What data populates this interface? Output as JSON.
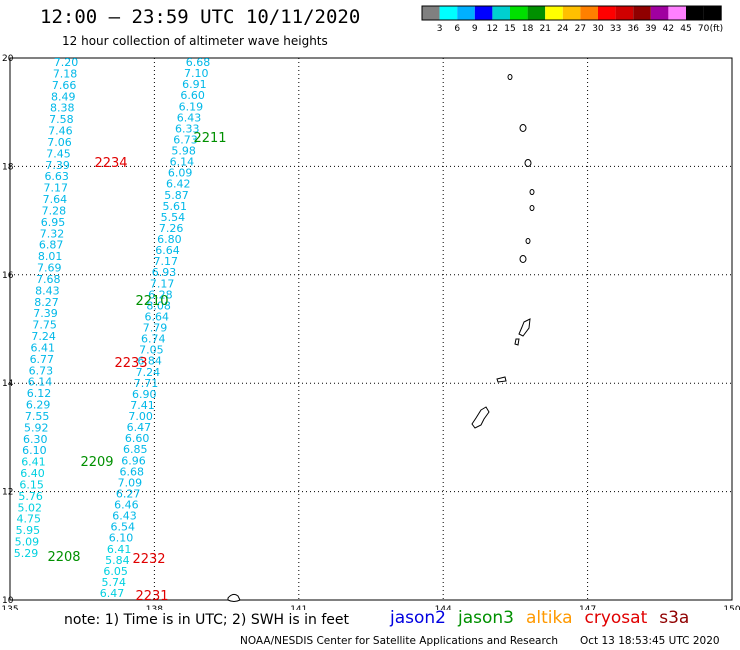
{
  "title": "12:00 – 23:59 UTC 10/11/2020",
  "subtitle": "12 hour collection of altimeter wave heights",
  "color_scale": {
    "unit": "(ft)",
    "ticks": [
      "3",
      "6",
      "9",
      "12",
      "15",
      "18",
      "21",
      "24",
      "27",
      "30",
      "33",
      "36",
      "39",
      "42",
      "45",
      "70"
    ],
    "colors": [
      "#808080",
      "#00ffff",
      "#00b0ff",
      "#0000ff",
      "#00d0d0",
      "#00e000",
      "#009000",
      "#ffff00",
      "#ffc000",
      "#ff8000",
      "#ff0000",
      "#d00000",
      "#900000",
      "#a000a0",
      "#ff80ff",
      "#000000",
      "#000000"
    ]
  },
  "axes": {
    "lon_labels": [
      "135",
      "138",
      "141",
      "144",
      "147",
      "150"
    ],
    "lat_labels": [
      "20",
      "18",
      "16",
      "14",
      "12",
      "10"
    ]
  },
  "tracks": [
    {
      "id": "2234",
      "mission": "cryosat",
      "label_color": "#e00000",
      "value_color": "#00b8e8",
      "points": [
        {
          "v": "7.20"
        },
        {
          "v": "7.18"
        },
        {
          "v": "7.66"
        },
        {
          "v": "8.49"
        },
        {
          "v": "8.38"
        },
        {
          "v": "7.58"
        },
        {
          "v": "7.46"
        },
        {
          "v": "7.06"
        },
        {
          "v": "7.45"
        },
        {
          "v": "7.39"
        },
        {
          "v": "6.63"
        },
        {
          "v": "7.17"
        },
        {
          "v": "7.64"
        },
        {
          "v": "7.28"
        },
        {
          "v": "6.95"
        },
        {
          "v": "7.32"
        },
        {
          "v": "6.87"
        },
        {
          "v": "8.01"
        },
        {
          "v": "7.69"
        },
        {
          "v": "7.68"
        },
        {
          "v": "8.43"
        },
        {
          "v": "8.27"
        },
        {
          "v": "7.39"
        },
        {
          "v": "7.75"
        },
        {
          "v": "7.24"
        },
        {
          "v": "6.41"
        },
        {
          "v": "6.77"
        },
        {
          "v": "6.73"
        },
        {
          "v": "6.14"
        },
        {
          "v": "6.12"
        },
        {
          "v": "6.29"
        },
        {
          "v": "7.55"
        },
        {
          "v": "5.92"
        },
        {
          "v": "6.30"
        },
        {
          "v": "6.10"
        },
        {
          "v": "6.41"
        },
        {
          "v": "6.40"
        },
        {
          "v": "6.15"
        },
        {
          "v": "5.76"
        },
        {
          "v": "5.02"
        },
        {
          "v": "4.75"
        },
        {
          "v": "5.95"
        },
        {
          "v": "5.09"
        },
        {
          "v": "5.29"
        }
      ]
    },
    {
      "id": "2211",
      "mission": "jason3",
      "label_color": "#009000",
      "value_color": "#00b8e8",
      "points": [
        {
          "v": "6.68"
        },
        {
          "v": "7.10"
        },
        {
          "v": "6.91"
        },
        {
          "v": "6.60"
        },
        {
          "v": "6.19"
        },
        {
          "v": "6.43"
        },
        {
          "v": "6.33"
        },
        {
          "v": "6.73"
        },
        {
          "v": "5.98"
        },
        {
          "v": "6.14"
        },
        {
          "v": "6.09"
        },
        {
          "v": "6.42"
        },
        {
          "v": "5.87"
        },
        {
          "v": "5.61"
        },
        {
          "v": "5.54"
        },
        {
          "v": "7.26"
        },
        {
          "v": "6.80"
        },
        {
          "v": "6.64"
        },
        {
          "v": "7.17"
        },
        {
          "v": "6.93"
        },
        {
          "v": "7.17"
        },
        {
          "v": "6.28"
        },
        {
          "v": "8.08"
        },
        {
          "v": "6.64"
        },
        {
          "v": "7.79"
        },
        {
          "v": "6.74"
        },
        {
          "v": "7.05"
        },
        {
          "v": "6.84"
        },
        {
          "v": "7.24"
        },
        {
          "v": "7.71"
        },
        {
          "v": "6.90"
        },
        {
          "v": "7.41"
        },
        {
          "v": "7.00"
        },
        {
          "v": "6.47"
        },
        {
          "v": "6.60"
        },
        {
          "v": "6.85"
        },
        {
          "v": "6.96"
        },
        {
          "v": "6.68"
        },
        {
          "v": "7.09"
        },
        {
          "v": "6.27"
        },
        {
          "v": "6.46"
        },
        {
          "v": "6.43"
        },
        {
          "v": "6.54"
        },
        {
          "v": "6.10"
        },
        {
          "v": "6.41"
        },
        {
          "v": "5.84"
        },
        {
          "v": "6.05"
        },
        {
          "v": "5.74"
        },
        {
          "v": "6.47"
        }
      ]
    }
  ],
  "pass_labels": [
    {
      "id": "2234",
      "color": "#e00000"
    },
    {
      "id": "2211",
      "color": "#009000"
    },
    {
      "id": "2210",
      "color": "#009000"
    },
    {
      "id": "2233",
      "color": "#e00000"
    },
    {
      "id": "2209",
      "color": "#009000"
    },
    {
      "id": "2208",
      "color": "#009000"
    },
    {
      "id": "2232",
      "color": "#e00000"
    },
    {
      "id": "2231",
      "color": "#e00000"
    }
  ],
  "footer": {
    "note": "note:  1) Time is in UTC;  2) SWH is in feet",
    "credit": "NOAA/NESDIS Center for Satellite Applications and Research",
    "timestamp": "Oct 13 18:53:45 UTC 2020"
  },
  "legend": [
    {
      "name": "jason2",
      "color": "#0000e0"
    },
    {
      "name": "jason3",
      "color": "#009000"
    },
    {
      "name": "altika",
      "color": "#ff9900"
    },
    {
      "name": "cryosat",
      "color": "#e00000"
    },
    {
      "name": "s3a",
      "color": "#900000"
    }
  ]
}
